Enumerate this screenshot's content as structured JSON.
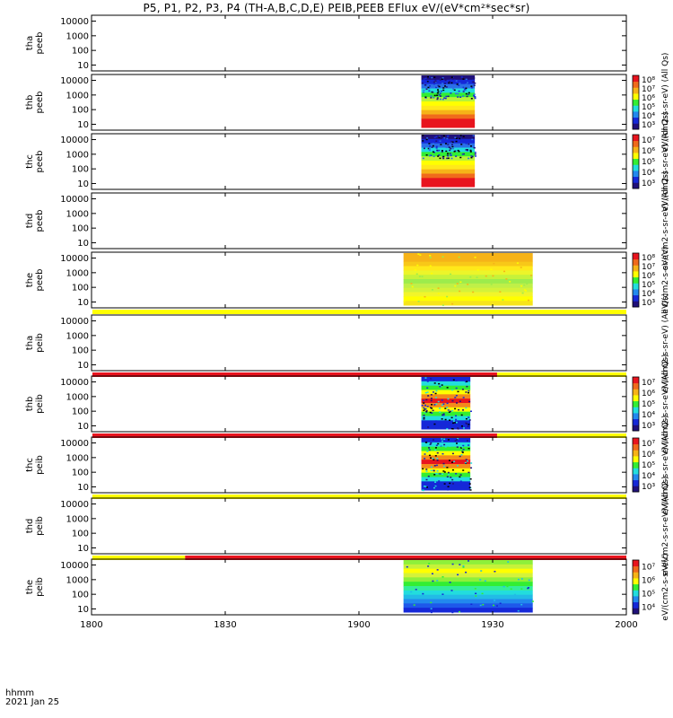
{
  "title": "P5, P1, P2, P3, P4 (TH-A,B,C,D,E) PEIB,PEEB EFlux eV/(eV*cm²*sec*sr)",
  "time_label": "hhmm",
  "date_label": "2021 Jan 25",
  "colors": {
    "red": "#e8141e",
    "orange": "#f38a1c",
    "yellow": "#ffff00",
    "green": "#33ee33",
    "cyan": "#22dddd",
    "blue": "#1528d8",
    "navy": "#20107a",
    "black": "#000000"
  },
  "chart_data": {
    "type": "heatmap",
    "xlim": [
      "1800",
      "2000"
    ],
    "x_ticks": [
      "1800",
      "1830",
      "1900",
      "1930",
      "2000"
    ],
    "y_ticks": [
      "10",
      "100",
      "1000",
      "10000"
    ],
    "y_scale": "log",
    "panels": [
      {
        "label": [
          "tha",
          "peeb"
        ],
        "blocks": [],
        "colorbar": null,
        "cbar_label": ""
      },
      {
        "label": [
          "thb",
          "peeb"
        ],
        "blocks": [
          {
            "start": "1914",
            "end": "1926",
            "style": "electron"
          }
        ],
        "colorbar": [
          "10³",
          "10⁴",
          "10⁵",
          "10⁶",
          "10⁷",
          "10⁸"
        ],
        "cbar_label": "eV/(cm2-s-sr-eV) (All Qs)"
      },
      {
        "label": [
          "thc",
          "peeb"
        ],
        "blocks": [
          {
            "start": "1914",
            "end": "1926",
            "style": "electron"
          }
        ],
        "colorbar": [
          "10³",
          "10⁴",
          "10⁵",
          "10⁶",
          "10⁷"
        ],
        "cbar_label": "eV/(cm2-s-sr-eV) (All Qs)"
      },
      {
        "label": [
          "thd",
          "peeb"
        ],
        "blocks": [],
        "colorbar": null,
        "cbar_label": "eV/(cm2-s-sr-eV) (All Qs)"
      },
      {
        "label": [
          "the",
          "peeb"
        ],
        "blocks": [
          {
            "start": "1910",
            "end": "1939",
            "style": "warm"
          }
        ],
        "colorbar": [
          "10³",
          "10⁴",
          "10⁵",
          "10⁶",
          "10⁷",
          "10⁸"
        ],
        "cbar_label": "eV/(cm2-s-sr-eV)",
        "bar_below": [
          {
            "start": "1800",
            "end": "2000",
            "color": "yellow"
          }
        ]
      },
      {
        "label": [
          "tha",
          "peib"
        ],
        "blocks": [],
        "colorbar": null,
        "cbar_label": "eV/(cm2-s-sr-eV) (All Qs)",
        "bar_below": [
          {
            "start": "1800",
            "end": "1931",
            "color": "red"
          },
          {
            "start": "1931",
            "end": "2000",
            "color": "yellow"
          }
        ]
      },
      {
        "label": [
          "thb",
          "peib"
        ],
        "blocks": [
          {
            "start": "1914",
            "end": "1925",
            "style": "ion"
          }
        ],
        "colorbar": [
          "10³",
          "10⁴",
          "10⁵",
          "10⁶",
          "10⁷"
        ],
        "cbar_label": "eV/(cm2-s-sr-eV) (All Qs)",
        "bar_below": [
          {
            "start": "1800",
            "end": "1931",
            "color": "red"
          },
          {
            "start": "1931",
            "end": "2000",
            "color": "yellow"
          }
        ]
      },
      {
        "label": [
          "thc",
          "peib"
        ],
        "blocks": [
          {
            "start": "1914",
            "end": "1925",
            "style": "ion"
          }
        ],
        "colorbar": [
          "10³",
          "10⁴",
          "10⁵",
          "10⁶",
          "10⁷"
        ],
        "cbar_label": "eV/(cm2-s-sr-eV) (All Qs)",
        "bar_below": [
          {
            "start": "1800",
            "end": "2000",
            "color": "yellow"
          }
        ]
      },
      {
        "label": [
          "thd",
          "peib"
        ],
        "blocks": [],
        "colorbar": null,
        "cbar_label": "eV/(cm2-s-sr-eV) (All Qs)",
        "bar_below": [
          {
            "start": "1800",
            "end": "1821",
            "color": "yellow"
          },
          {
            "start": "1821",
            "end": "2000",
            "color": "red"
          }
        ]
      },
      {
        "label": [
          "the",
          "peib"
        ],
        "blocks": [
          {
            "start": "1910",
            "end": "1939",
            "style": "cool"
          }
        ],
        "colorbar": [
          "10⁴",
          "10⁵",
          "10⁶",
          "10⁷"
        ],
        "cbar_label": "eV/(cm2-s-sr-eV)"
      }
    ]
  }
}
